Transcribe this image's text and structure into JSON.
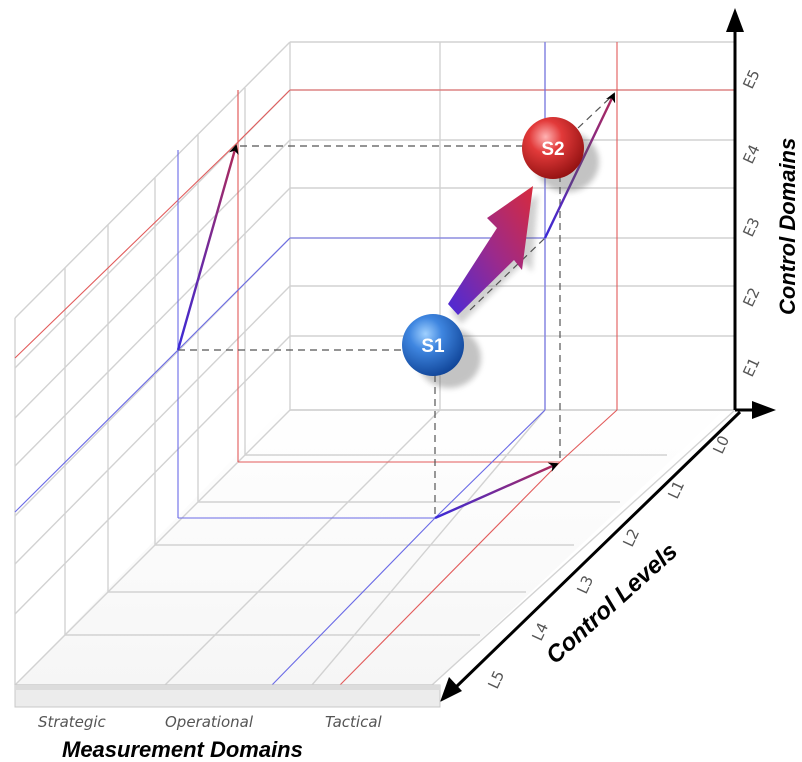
{
  "axes": {
    "vertical_title": "Control Domains",
    "depth_title": "Control Levels",
    "horizontal_title": "Measurement Domains",
    "vertical_ticks": [
      "E5",
      "E4",
      "E3",
      "E2",
      "E1"
    ],
    "depth_ticks": [
      "L0",
      "L1",
      "L2",
      "L3",
      "L4",
      "L5"
    ],
    "horizontal_ticks": [
      "Strategic",
      "Operational",
      "Tactical"
    ]
  },
  "states": {
    "s1": {
      "label": "S1",
      "color": "#2a6fd1"
    },
    "s2": {
      "label": "S2",
      "color": "#d62a2a"
    }
  },
  "colors": {
    "red_guides": "#e25b5b",
    "blue_guides": "#6a6ae6",
    "grid": "#d2d2d2"
  }
}
